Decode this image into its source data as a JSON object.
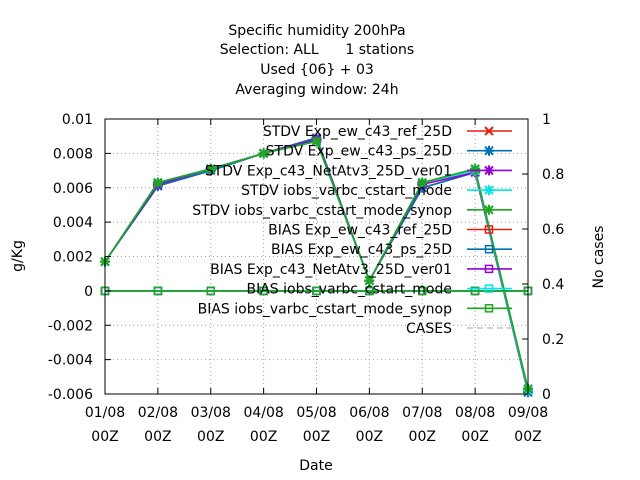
{
  "chart_data": {
    "type": "line",
    "title_lines": [
      "Specific humidity 200hPa",
      "Selection: ALL      1 stations",
      "Used {06} + 03",
      "Averaging window: 24h"
    ],
    "xlabel": "Date",
    "ylabel": "g/Kg",
    "y2label": "No cases",
    "x_dates": [
      "01/08",
      "02/08",
      "03/08",
      "04/08",
      "05/08",
      "06/08",
      "07/08",
      "08/08",
      "09/08"
    ],
    "x_hour": "00Z",
    "ylim": [
      -0.006,
      0.01
    ],
    "yticks": [
      "0.01",
      "0.008",
      "0.006",
      "0.004",
      "0.002",
      "0",
      "-0.002",
      "-0.004",
      "-0.006"
    ],
    "y2lim": [
      0,
      1
    ],
    "y2ticks": [
      "1",
      "0.8",
      "0.6",
      "0.4",
      "0.2",
      "0"
    ],
    "grid": true,
    "legend_position": "top-right",
    "series": [
      {
        "name": "STDV Exp_ew_c43_ref_25D",
        "marker": "x",
        "color": "#e51e10",
        "x": [
          0,
          1,
          2,
          3,
          4,
          5,
          6,
          7,
          8
        ],
        "y": [
          0.0017,
          0.0061,
          0.007,
          0.008,
          0.0089,
          0.0006,
          0.006,
          0.0069,
          -0.0059
        ]
      },
      {
        "name": "STDV Exp_ew_c43_ps_25D",
        "marker": "star",
        "color": "#0072b2",
        "x": [
          0,
          1,
          2,
          3,
          4,
          5,
          6,
          7,
          8
        ],
        "y": [
          0.0017,
          0.0061,
          0.007,
          0.008,
          0.0089,
          0.0006,
          0.006,
          0.0069,
          -0.0059
        ]
      },
      {
        "name": "STDV Exp_c43_NetAtv3_25D_ver01",
        "marker": "star",
        "color": "#9400d3",
        "x": [
          0,
          1,
          2,
          3,
          4,
          5,
          6,
          7,
          8
        ],
        "y": [
          0.0017,
          0.0062,
          0.0071,
          0.008,
          0.0088,
          0.0006,
          0.0062,
          0.0069,
          -0.0058
        ]
      },
      {
        "name": "STDV iobs_varbc_cstart_mode",
        "marker": "star",
        "color": "#00e5e5",
        "x": [
          0,
          1,
          2,
          3,
          4,
          5,
          6,
          7,
          8
        ],
        "y": [
          0.0017,
          0.0063,
          0.0071,
          0.008,
          0.0087,
          0.0006,
          0.0063,
          0.007,
          -0.0058
        ]
      },
      {
        "name": "STDV iobs_varbc_cstart_mode_synop",
        "marker": "star",
        "color": "#1fa51f",
        "x": [
          0,
          1,
          2,
          3,
          4,
          5,
          6,
          7,
          8
        ],
        "y": [
          0.0017,
          0.0063,
          0.0071,
          0.008,
          0.0087,
          0.0006,
          0.0063,
          0.0071,
          -0.0057
        ]
      },
      {
        "name": "BIAS Exp_ew_c43_ref_25D",
        "marker": "square",
        "color": "#e51e10",
        "x": [
          0,
          1,
          2,
          3,
          4,
          5,
          6,
          7,
          8
        ],
        "y": [
          0,
          0,
          0,
          0,
          0,
          0,
          0,
          0,
          0
        ]
      },
      {
        "name": "BIAS Exp_ew_c43_ps_25D",
        "marker": "square",
        "color": "#0072b2",
        "x": [
          0,
          1,
          2,
          3,
          4,
          5,
          6,
          7,
          8
        ],
        "y": [
          0,
          0,
          0,
          0,
          0,
          0,
          0,
          0,
          0
        ]
      },
      {
        "name": "BIAS Exp_c43_NetAtv3_25D_ver01",
        "marker": "square",
        "color": "#9400d3",
        "x": [
          0,
          1,
          2,
          3,
          4,
          5,
          6,
          7,
          8
        ],
        "y": [
          0,
          0,
          0,
          0,
          0,
          0,
          0,
          0,
          0
        ]
      },
      {
        "name": "BIAS iobs_varbc_cstart_mode",
        "marker": "square",
        "color": "#00e5e5",
        "x": [
          0,
          1,
          2,
          3,
          4,
          5,
          6,
          7,
          8
        ],
        "y": [
          0,
          0,
          0,
          0,
          0,
          0,
          0,
          0,
          0
        ]
      },
      {
        "name": "BIAS iobs_varbc_cstart_mode_synop",
        "marker": "square",
        "color": "#1fa51f",
        "x": [
          0,
          1,
          2,
          3,
          4,
          5,
          6,
          7,
          8
        ],
        "y": [
          0,
          0,
          0,
          0,
          0,
          0,
          0,
          0,
          0
        ]
      },
      {
        "name": "CASES",
        "marker": "none",
        "color": "#c0c0c0",
        "dash": true,
        "x": [],
        "y": []
      }
    ]
  }
}
